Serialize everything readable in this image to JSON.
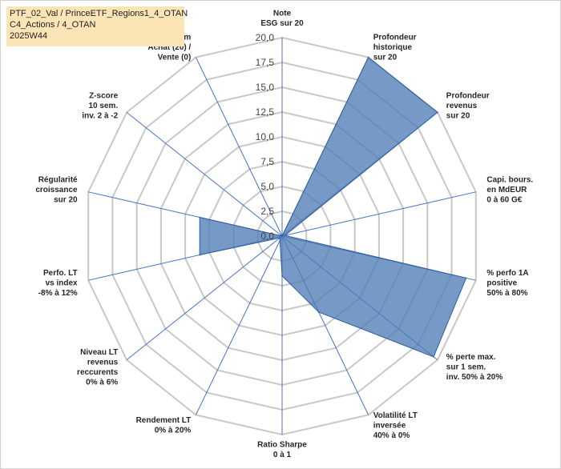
{
  "title_lines": [
    "PTF_02_Val / PrinceETF_Regions1_4_OTAN",
    "C4_Actions / 4_OTAN",
    "2025W44"
  ],
  "colors": {
    "fill": "#4f7cb5",
    "fill_opacity": 0.78,
    "stroke": "#2f5f9e",
    "grid": "#c8c8c8",
    "spokes": "#4472c4",
    "title_bg": "#fbe5b6"
  },
  "chart_data": {
    "type": "radar",
    "rmin": 0,
    "rmax": 20,
    "ticks": [
      "0,0",
      "2,5",
      "5,0",
      "7,5",
      "10,0",
      "12,5",
      "15,0",
      "17,5",
      "20,0"
    ],
    "tick_values": [
      0,
      2.5,
      5,
      7.5,
      10,
      12.5,
      15,
      17.5,
      20
    ],
    "axes": [
      [
        "Note",
        "ESG sur 20"
      ],
      [
        "Profondeur",
        "historique",
        "sur 20"
      ],
      [
        "Profondeur",
        "revenus",
        "sur 20"
      ],
      [
        "Capi. bours.",
        "en MdEUR",
        "0 à 60 G€"
      ],
      [
        "% perfo 1A",
        "positive",
        "50% à 80%"
      ],
      [
        "% perte max.",
        "sur 1 sem.",
        "inv. 50% à 20%"
      ],
      [
        "Volatilité LT",
        "inversée",
        "40% à 0%"
      ],
      [
        "Ratio Sharpe",
        "0 à 1"
      ],
      [
        "Rendement LT",
        "0% à 20%"
      ],
      [
        "Niveau LT",
        "revenus",
        "reccurents",
        "0% à 6%"
      ],
      [
        "Perfo. LT",
        "vs index",
        "-8% à 12%"
      ],
      [
        "Régularité",
        "croissance",
        "sur 20"
      ],
      [
        "Z-score",
        "10 sem.",
        "inv. 2 à -2"
      ],
      [
        "Momentum",
        "Achat (20) /",
        "Vente (0)"
      ]
    ],
    "values": [
      0,
      20,
      20,
      0.3,
      19,
      19.5,
      8.5,
      4,
      0.5,
      0.3,
      8.5,
      8.5,
      0,
      0
    ],
    "series": [
      {
        "name": "",
        "values": [
          0,
          20,
          20,
          0.3,
          19,
          19.5,
          8.5,
          4,
          0.5,
          0.3,
          8.5,
          8.5,
          0,
          0
        ]
      }
    ]
  }
}
